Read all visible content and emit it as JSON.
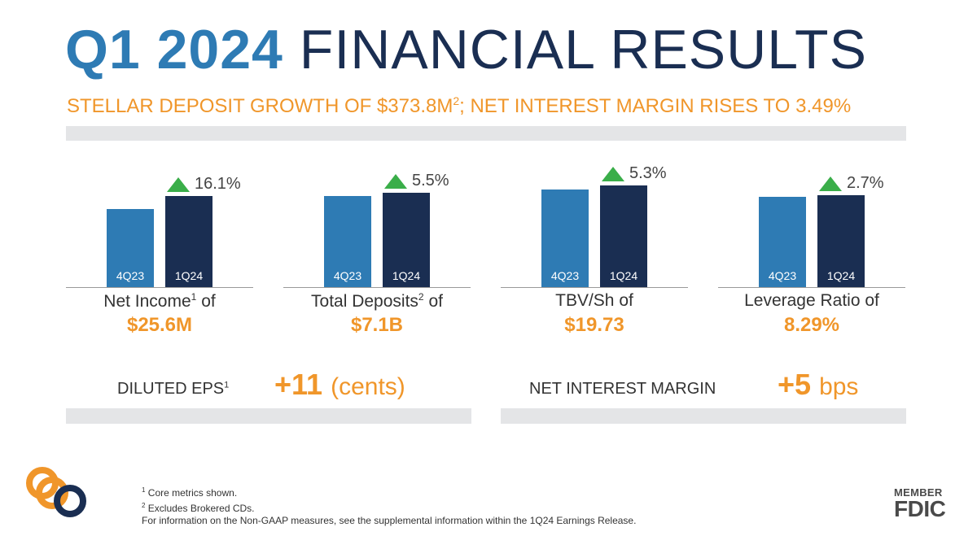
{
  "header": {
    "title_accent": "Q1 2024",
    "title_rest": "FINANCIAL RESULTS",
    "subtitle_a": "STELLAR DEPOSIT GROWTH OF $373.8M",
    "subtitle_sup": "2",
    "subtitle_b": "; NET INTEREST MARGIN RISES TO 3.49%"
  },
  "colors": {
    "accent_blue": "#2e7bb4",
    "navy": "#1a2e52",
    "orange": "#f0962a",
    "increase_green": "#3aae49",
    "band_gray": "#e4e5e7"
  },
  "chart_data": [
    {
      "type": "bar",
      "categories": [
        "4Q23",
        "1Q24"
      ],
      "values": [
        0.74,
        0.86
      ],
      "change": "16.1%",
      "caption": "Net Income",
      "caption_sup": "1",
      "caption_suffix": " of",
      "value_label": "$25.6M"
    },
    {
      "type": "bar",
      "categories": [
        "4Q23",
        "1Q24"
      ],
      "values": [
        0.86,
        0.89
      ],
      "change": "5.5%",
      "caption": "Total Deposits",
      "caption_sup": "2",
      "caption_suffix": " of",
      "value_label": "$7.1B"
    },
    {
      "type": "bar",
      "categories": [
        "4Q23",
        "1Q24"
      ],
      "values": [
        0.92,
        0.96
      ],
      "change": "5.3%",
      "caption": "TBV/Sh",
      "caption_sup": "",
      "caption_suffix": " of",
      "value_label": "$19.73"
    },
    {
      "type": "bar",
      "categories": [
        "4Q23",
        "1Q24"
      ],
      "values": [
        0.85,
        0.87
      ],
      "change": "2.7%",
      "caption": "Leverage Ratio",
      "caption_sup": "",
      "caption_suffix": " of",
      "value_label": "8.29%"
    }
  ],
  "kpis": {
    "eps_label": "DILUTED EPS",
    "eps_sup": "1",
    "eps_value": "+11",
    "eps_unit": "(cents)",
    "nim_label": "NET INTEREST MARGIN",
    "nim_value": "+5",
    "nim_unit": "bps"
  },
  "footnotes": {
    "note1_sup": "1",
    "note1": " Core metrics shown.",
    "note2_sup": "2",
    "note2": " Excludes Brokered CDs.",
    "note3": "For information on the Non-GAAP measures, see the supplemental information within the 1Q24 Earnings Release."
  },
  "brand": {
    "member": "MEMBER",
    "fdic": "FDIC",
    "logo_icon": "interlocking-rings-logo"
  }
}
